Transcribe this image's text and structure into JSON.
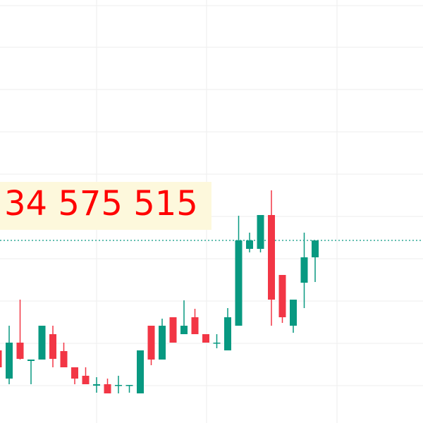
{
  "chart_data": {
    "type": "candlestick",
    "price_label": "34 575 515",
    "price_line": 259,
    "ylim": [
      0,
      600
    ],
    "up_color": "#089981",
    "down_color": "#f23645",
    "label_color": "#ff0000",
    "line_color": "#089981",
    "open": [
      103,
      63,
      114,
      88,
      90,
      126,
      102,
      79,
      67,
      53,
      55,
      53,
      53,
      42,
      138,
      90,
      150,
      126,
      150,
      126,
      113,
      103,
      138,
      247,
      247,
      295,
      210,
      138,
      199,
      235
    ],
    "high": [
      103,
      138,
      175,
      90,
      138,
      138,
      114,
      79,
      79,
      65,
      63,
      67,
      54,
      103,
      138,
      148,
      150,
      174,
      162,
      126,
      126,
      163,
      294,
      270,
      295,
      330,
      210,
      175,
      270,
      259
    ],
    "low": [
      79,
      55,
      90,
      55,
      90,
      79,
      79,
      55,
      55,
      43,
      42,
      42,
      43,
      42,
      82,
      90,
      114,
      126,
      126,
      114,
      106,
      103,
      138,
      242,
      242,
      138,
      142,
      128,
      163,
      200
    ],
    "close": [
      79,
      114,
      91,
      90,
      138,
      91,
      79,
      63,
      55,
      55,
      42,
      54,
      54,
      103,
      90,
      138,
      114,
      138,
      126,
      114,
      114,
      150,
      259,
      259,
      295,
      175,
      150,
      175,
      235,
      259
    ]
  }
}
